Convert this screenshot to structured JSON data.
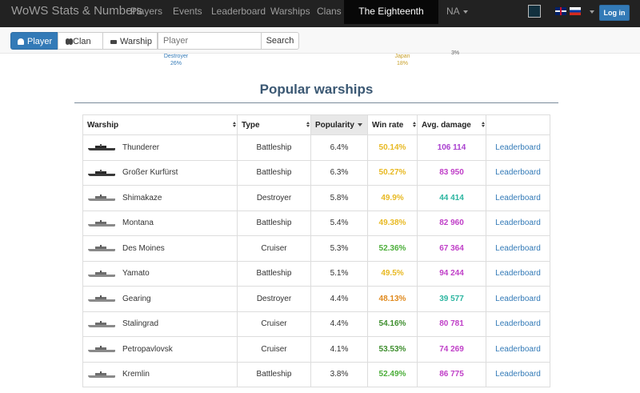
{
  "navbar": {
    "brand": "WoWS Stats & Numbers",
    "items": [
      "Players",
      "Events",
      "Leaderboard",
      "Warships",
      "Clans"
    ],
    "active_item": "The Eighteenth Season",
    "region": "NA",
    "login_label": "Log in"
  },
  "search": {
    "modes": [
      "Player",
      "Clan",
      "Warship"
    ],
    "placeholder": "Player",
    "button_label": "Search"
  },
  "chart_remnants": {
    "label1": "Destroyer",
    "value1": "26%",
    "label2": "Japan",
    "value2": "18%",
    "value3": "3%"
  },
  "section_title": "Popular warships",
  "table": {
    "headers": [
      "Warship",
      "Type",
      "Popularity",
      "Win rate",
      "Avg. damage",
      ""
    ],
    "rows": [
      {
        "ship": "Thunderer",
        "type": "Battleship",
        "popularity": "6.4%",
        "winrate": "50.14%",
        "wr_color": "#e8b923",
        "damage": "106 114",
        "dmg_color": "#a93fcf",
        "link": "Leaderboard"
      },
      {
        "ship": "Großer Kurfürst",
        "type": "Battleship",
        "popularity": "6.3%",
        "winrate": "50.27%",
        "wr_color": "#e8b923",
        "damage": "83 950",
        "dmg_color": "#c040c8",
        "link": "Leaderboard"
      },
      {
        "ship": "Shimakaze",
        "type": "Destroyer",
        "popularity": "5.8%",
        "winrate": "49.9%",
        "wr_color": "#e8b923",
        "damage": "44 414",
        "dmg_color": "#2bb5a0",
        "link": "Leaderboard"
      },
      {
        "ship": "Montana",
        "type": "Battleship",
        "popularity": "5.4%",
        "winrate": "49.38%",
        "wr_color": "#e8b923",
        "damage": "82 960",
        "dmg_color": "#c040c8",
        "link": "Leaderboard"
      },
      {
        "ship": "Des Moines",
        "type": "Cruiser",
        "popularity": "5.3%",
        "winrate": "52.36%",
        "wr_color": "#4cae3a",
        "damage": "67 364",
        "dmg_color": "#c040c8",
        "link": "Leaderboard"
      },
      {
        "ship": "Yamato",
        "type": "Battleship",
        "popularity": "5.1%",
        "winrate": "49.5%",
        "wr_color": "#e8b923",
        "damage": "94 244",
        "dmg_color": "#c040c8",
        "link": "Leaderboard"
      },
      {
        "ship": "Gearing",
        "type": "Destroyer",
        "popularity": "4.4%",
        "winrate": "48.13%",
        "wr_color": "#e08a1e",
        "damage": "39 577",
        "dmg_color": "#2bb5a0",
        "link": "Leaderboard"
      },
      {
        "ship": "Stalingrad",
        "type": "Cruiser",
        "popularity": "4.4%",
        "winrate": "54.16%",
        "wr_color": "#3e8e2e",
        "damage": "80 781",
        "dmg_color": "#c040c8",
        "link": "Leaderboard"
      },
      {
        "ship": "Petropavlovsk",
        "type": "Cruiser",
        "popularity": "4.1%",
        "winrate": "53.53%",
        "wr_color": "#3e8e2e",
        "damage": "74 269",
        "dmg_color": "#c040c8",
        "link": "Leaderboard"
      },
      {
        "ship": "Kremlin",
        "type": "Battleship",
        "popularity": "3.8%",
        "winrate": "52.49%",
        "wr_color": "#4cae3a",
        "damage": "86 775",
        "dmg_color": "#c040c8",
        "link": "Leaderboard"
      }
    ]
  }
}
